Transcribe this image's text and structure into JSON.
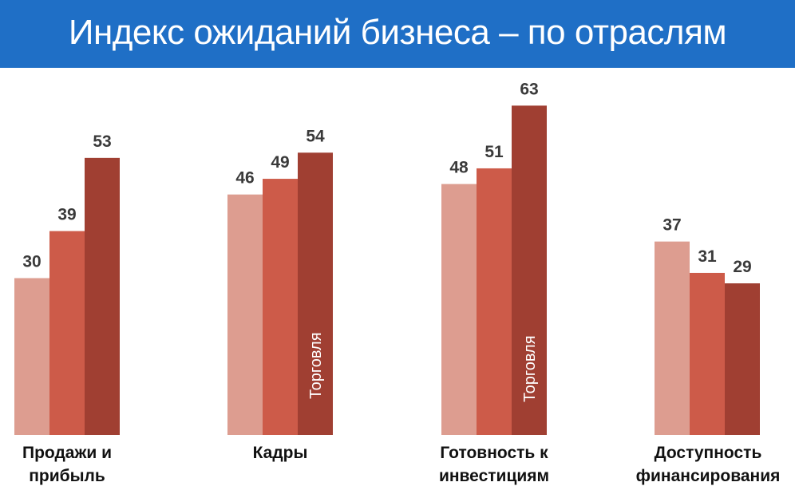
{
  "header": {
    "title": "Индекс ожиданий бизнеса – по отраслям"
  },
  "chart_data": {
    "type": "bar",
    "title": "Индекс ожиданий бизнеса – по отраслям",
    "categories": [
      [
        "Продажи и",
        "прибыль"
      ],
      [
        "Кадры"
      ],
      [
        "Готовность к",
        "инвестициям"
      ],
      [
        "Доступность",
        "финансирования"
      ]
    ],
    "series": [
      {
        "values": [
          30,
          46,
          48,
          37
        ],
        "color": "#dd9d90"
      },
      {
        "values": [
          39,
          49,
          51,
          31
        ],
        "color": "#cd5b49"
      },
      {
        "values": [
          53,
          54,
          63,
          29
        ],
        "color": "#a03f32",
        "label": "Торговля"
      }
    ],
    "in_bar_labels": [
      {
        "category": 1,
        "series": 2,
        "text": "Торговля"
      },
      {
        "category": 2,
        "series": 2,
        "text": "Торговля"
      }
    ],
    "ylim": [
      0,
      70
    ],
    "grid": false,
    "legend": "none"
  }
}
